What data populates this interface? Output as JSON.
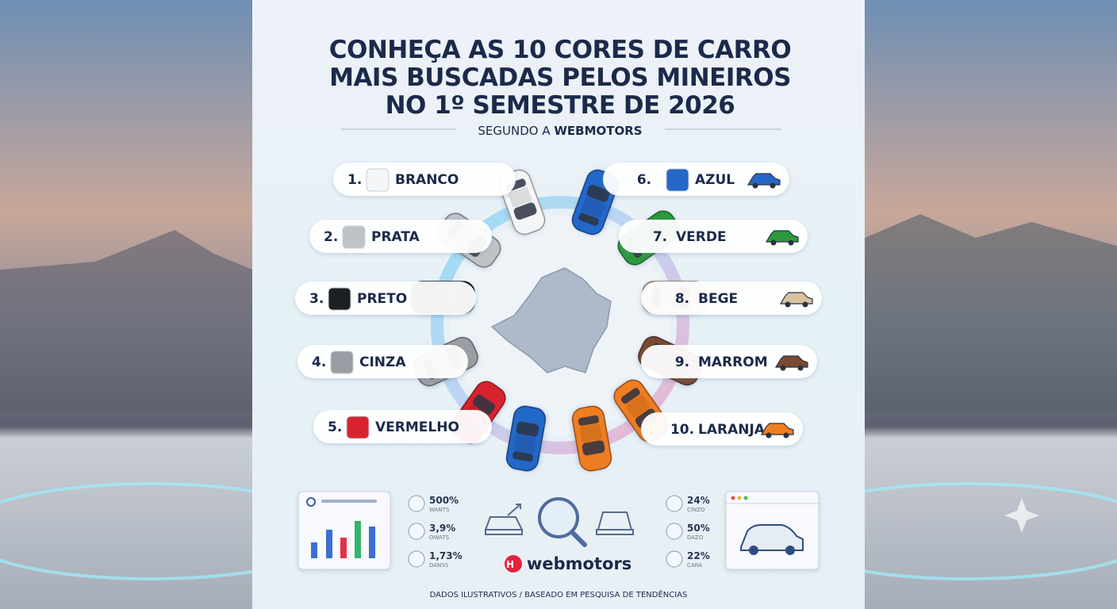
{
  "header": {
    "title_lines": [
      "CONHEÇA AS 10 CORES DE CARRO",
      "MAIS BUSCADAS PELOS MINEIROS",
      "NO 1º SEMESTRE DE 2026"
    ],
    "subtitle_prefix": "SEGUNDO A",
    "subtitle_brand": "WEBMOTORS"
  },
  "ranking": [
    {
      "rank": "1.",
      "name": "BRANCO",
      "color": "#f4f5f7"
    },
    {
      "rank": "2.",
      "name": "PRATA",
      "color": "#bfc3c8"
    },
    {
      "rank": "3.",
      "name": "PRETO",
      "color": "#1d1f23"
    },
    {
      "rank": "4.",
      "name": "CINZA",
      "color": "#9a9ea4"
    },
    {
      "rank": "5.",
      "name": "VERMELHO",
      "color": "#d8232f"
    },
    {
      "rank": "6.",
      "name": "AZUL",
      "color": "#2467c9"
    },
    {
      "rank": "7.",
      "name": "VERDE",
      "color": "#2c9a3c"
    },
    {
      "rank": "8.",
      "name": "BEGE",
      "color": "#d8c3a0"
    },
    {
      "rank": "9.",
      "name": "MARROM",
      "color": "#7a4a32"
    },
    {
      "rank": "10.",
      "name": "LARANJA",
      "color": "#ef7d22"
    }
  ],
  "stats_left": [
    {
      "value": "500%",
      "label": "WANTS"
    },
    {
      "value": "3,9%",
      "label": "OWATS"
    },
    {
      "value": "1,73%",
      "label": "DANSS"
    }
  ],
  "stats_right": [
    {
      "value": "24%",
      "label": "CINZO"
    },
    {
      "value": "50%",
      "label": "DAZO"
    },
    {
      "value": "22%",
      "label": "CARA"
    }
  ],
  "brand": "webmotors",
  "footer": "DADOS ILUSTRATIVOS / BASEADO EM PESQUISA DE TENDÊNCIAS"
}
